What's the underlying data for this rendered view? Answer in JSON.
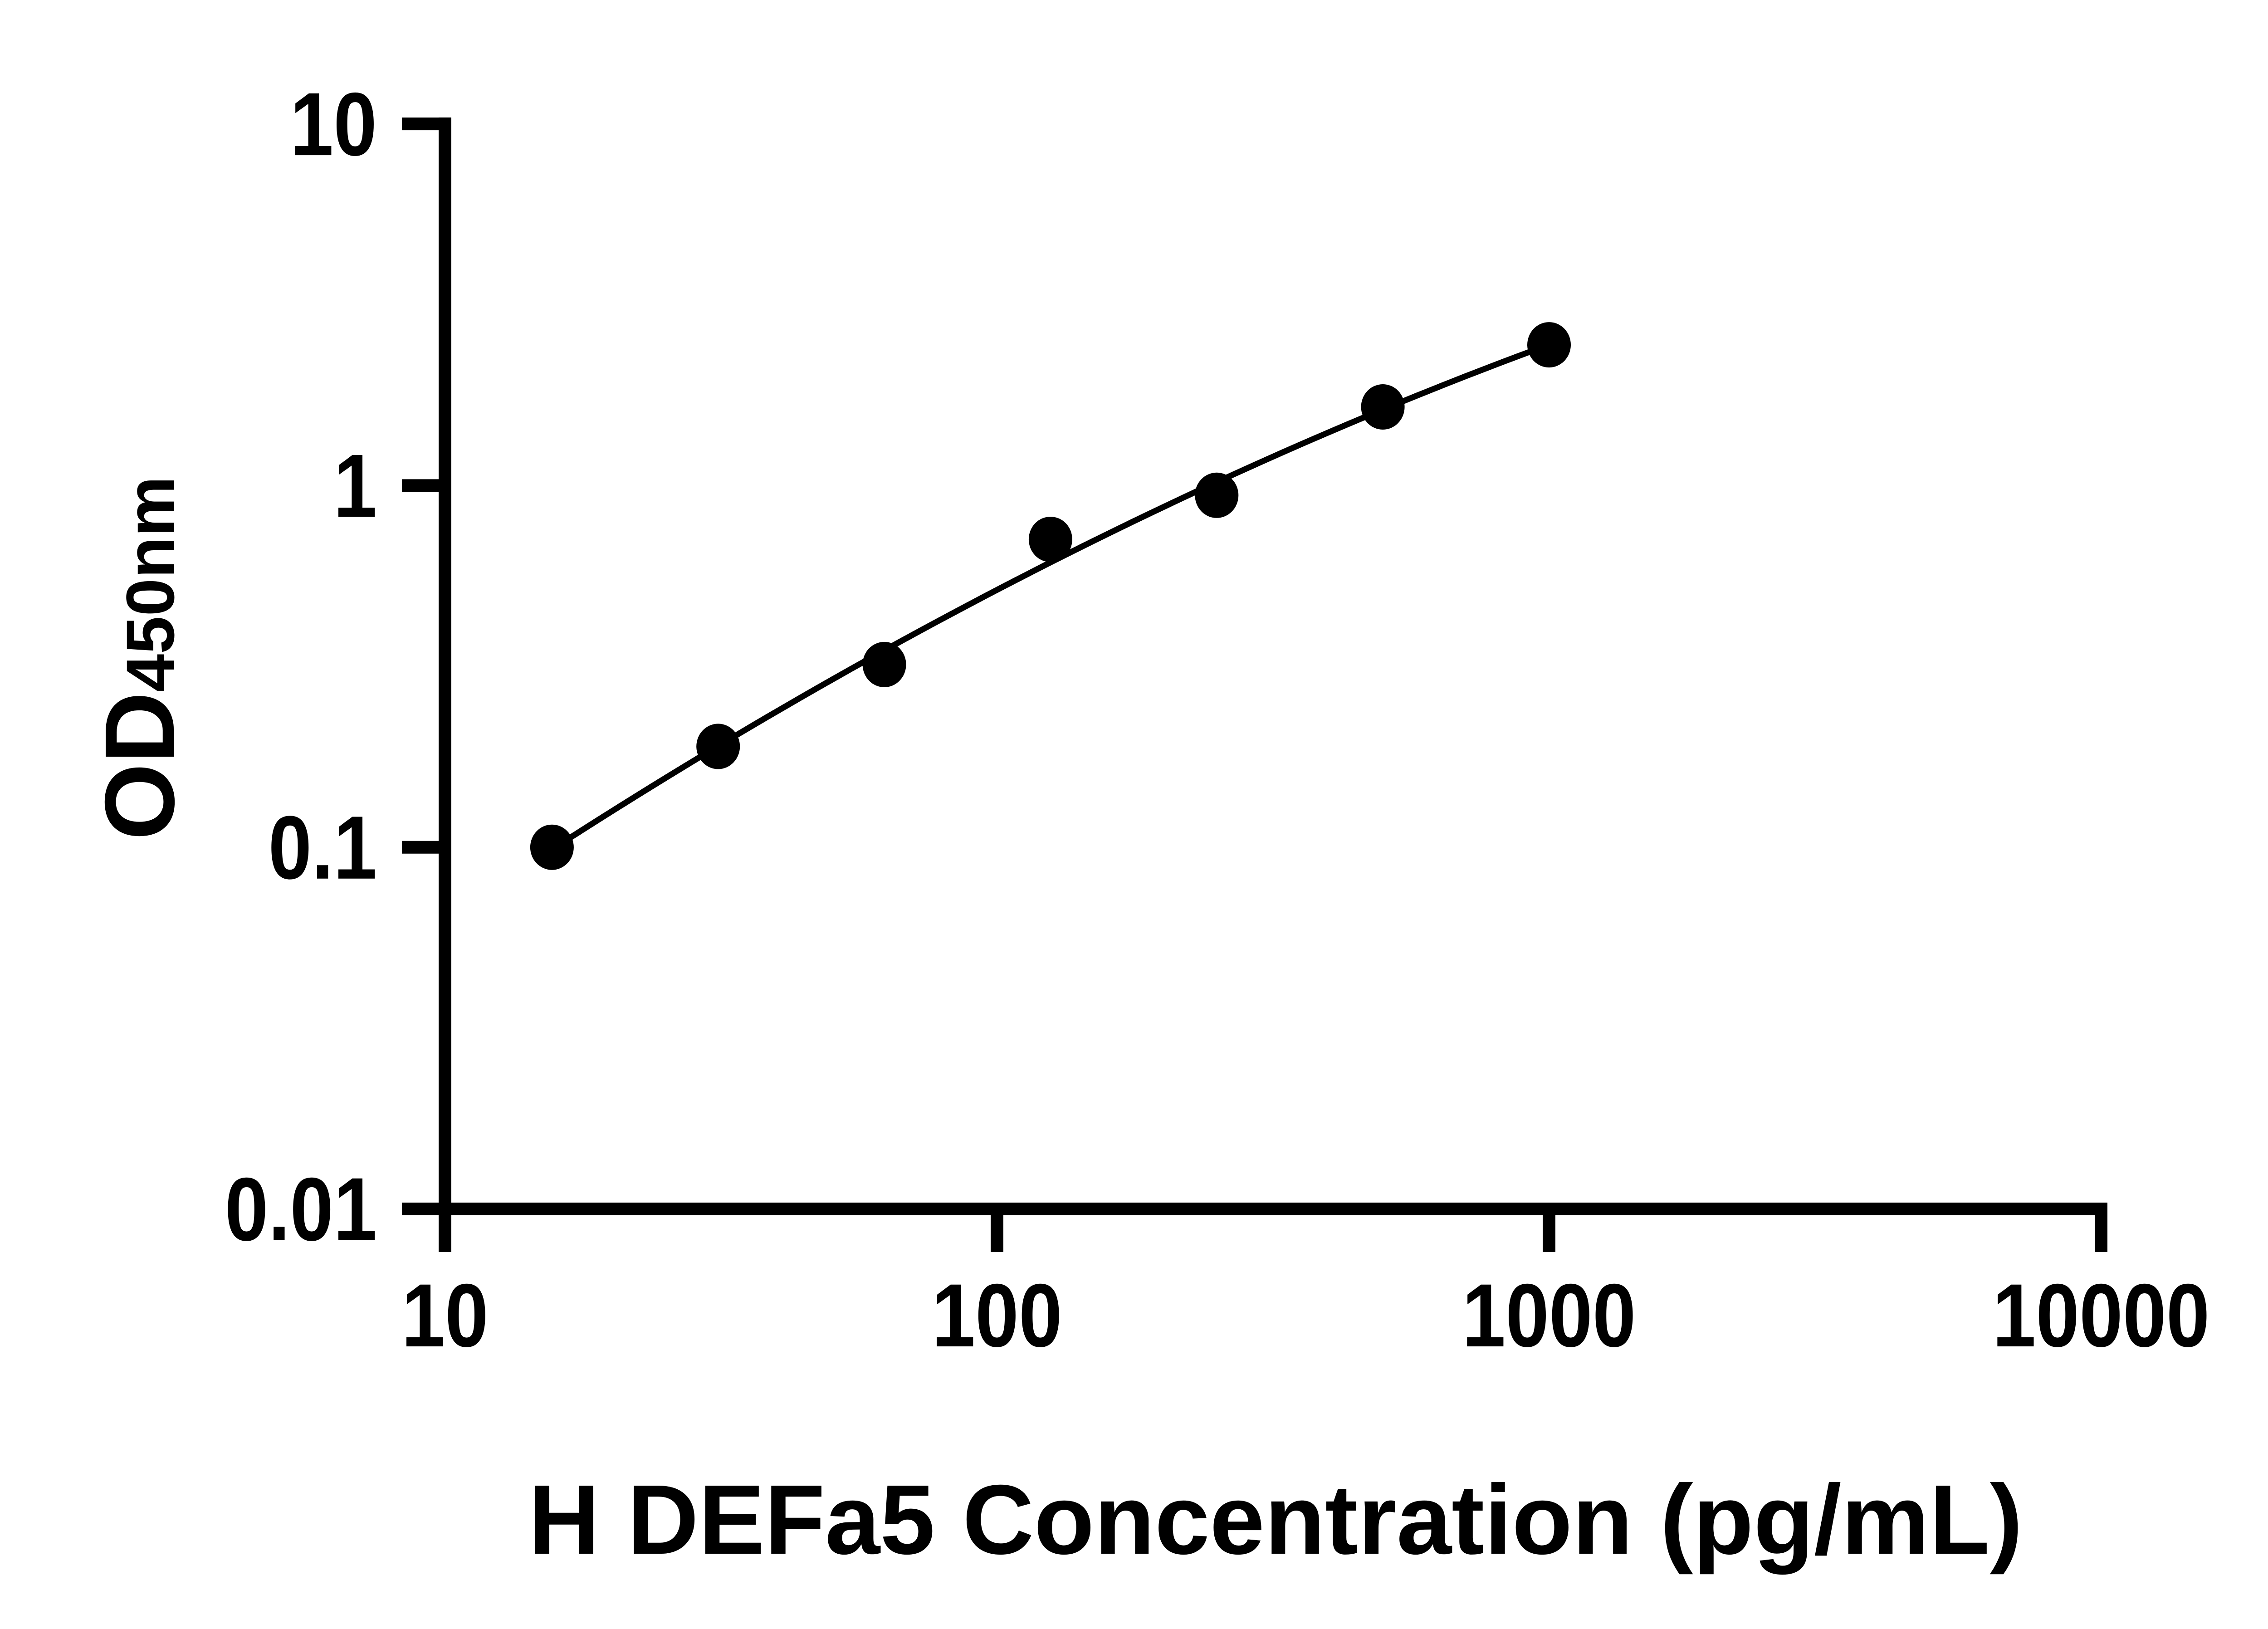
{
  "chart_data": {
    "type": "scatter",
    "title": "",
    "xlabel": "H DEFa5 Concentration (pg/mL)",
    "ylabel_main": "OD",
    "ylabel_sub": "450nm",
    "x_scale": "log",
    "y_scale": "log",
    "xlim": [
      10,
      10000
    ],
    "ylim": [
      0.01,
      10
    ],
    "grid": false,
    "legend": "none",
    "x_ticks": [
      {
        "value": 10,
        "label": "10"
      },
      {
        "value": 100,
        "label": "100"
      },
      {
        "value": 1000,
        "label": "1000"
      },
      {
        "value": 10000,
        "label": "10000"
      }
    ],
    "y_ticks": [
      {
        "value": 10,
        "label": "10"
      },
      {
        "value": 1,
        "label": "1"
      },
      {
        "value": 0.1,
        "label": "0.1"
      },
      {
        "value": 0.01,
        "label": "0.01"
      }
    ],
    "series": [
      {
        "name": "standard-curve-points",
        "marker": "circle",
        "color": "#000000",
        "points": [
          {
            "x": 15.625,
            "y": 0.1
          },
          {
            "x": 31.25,
            "y": 0.19
          },
          {
            "x": 62.5,
            "y": 0.32
          },
          {
            "x": 125,
            "y": 0.71
          },
          {
            "x": 250,
            "y": 0.94
          },
          {
            "x": 500,
            "y": 1.65
          },
          {
            "x": 1000,
            "y": 2.45
          }
        ]
      }
    ],
    "fit_curve": {
      "name": "fitted-curve",
      "color": "#000000",
      "model": "quadratic in log10(x), log10(y)",
      "coeffs": {
        "a": -0.2124,
        "b": 0.7727,
        "c": -0.1174,
        "u0": 2.0969
      },
      "x_range": [
        15.625,
        1000
      ]
    }
  },
  "style": {
    "accent": "#000000",
    "background": "#ffffff"
  }
}
